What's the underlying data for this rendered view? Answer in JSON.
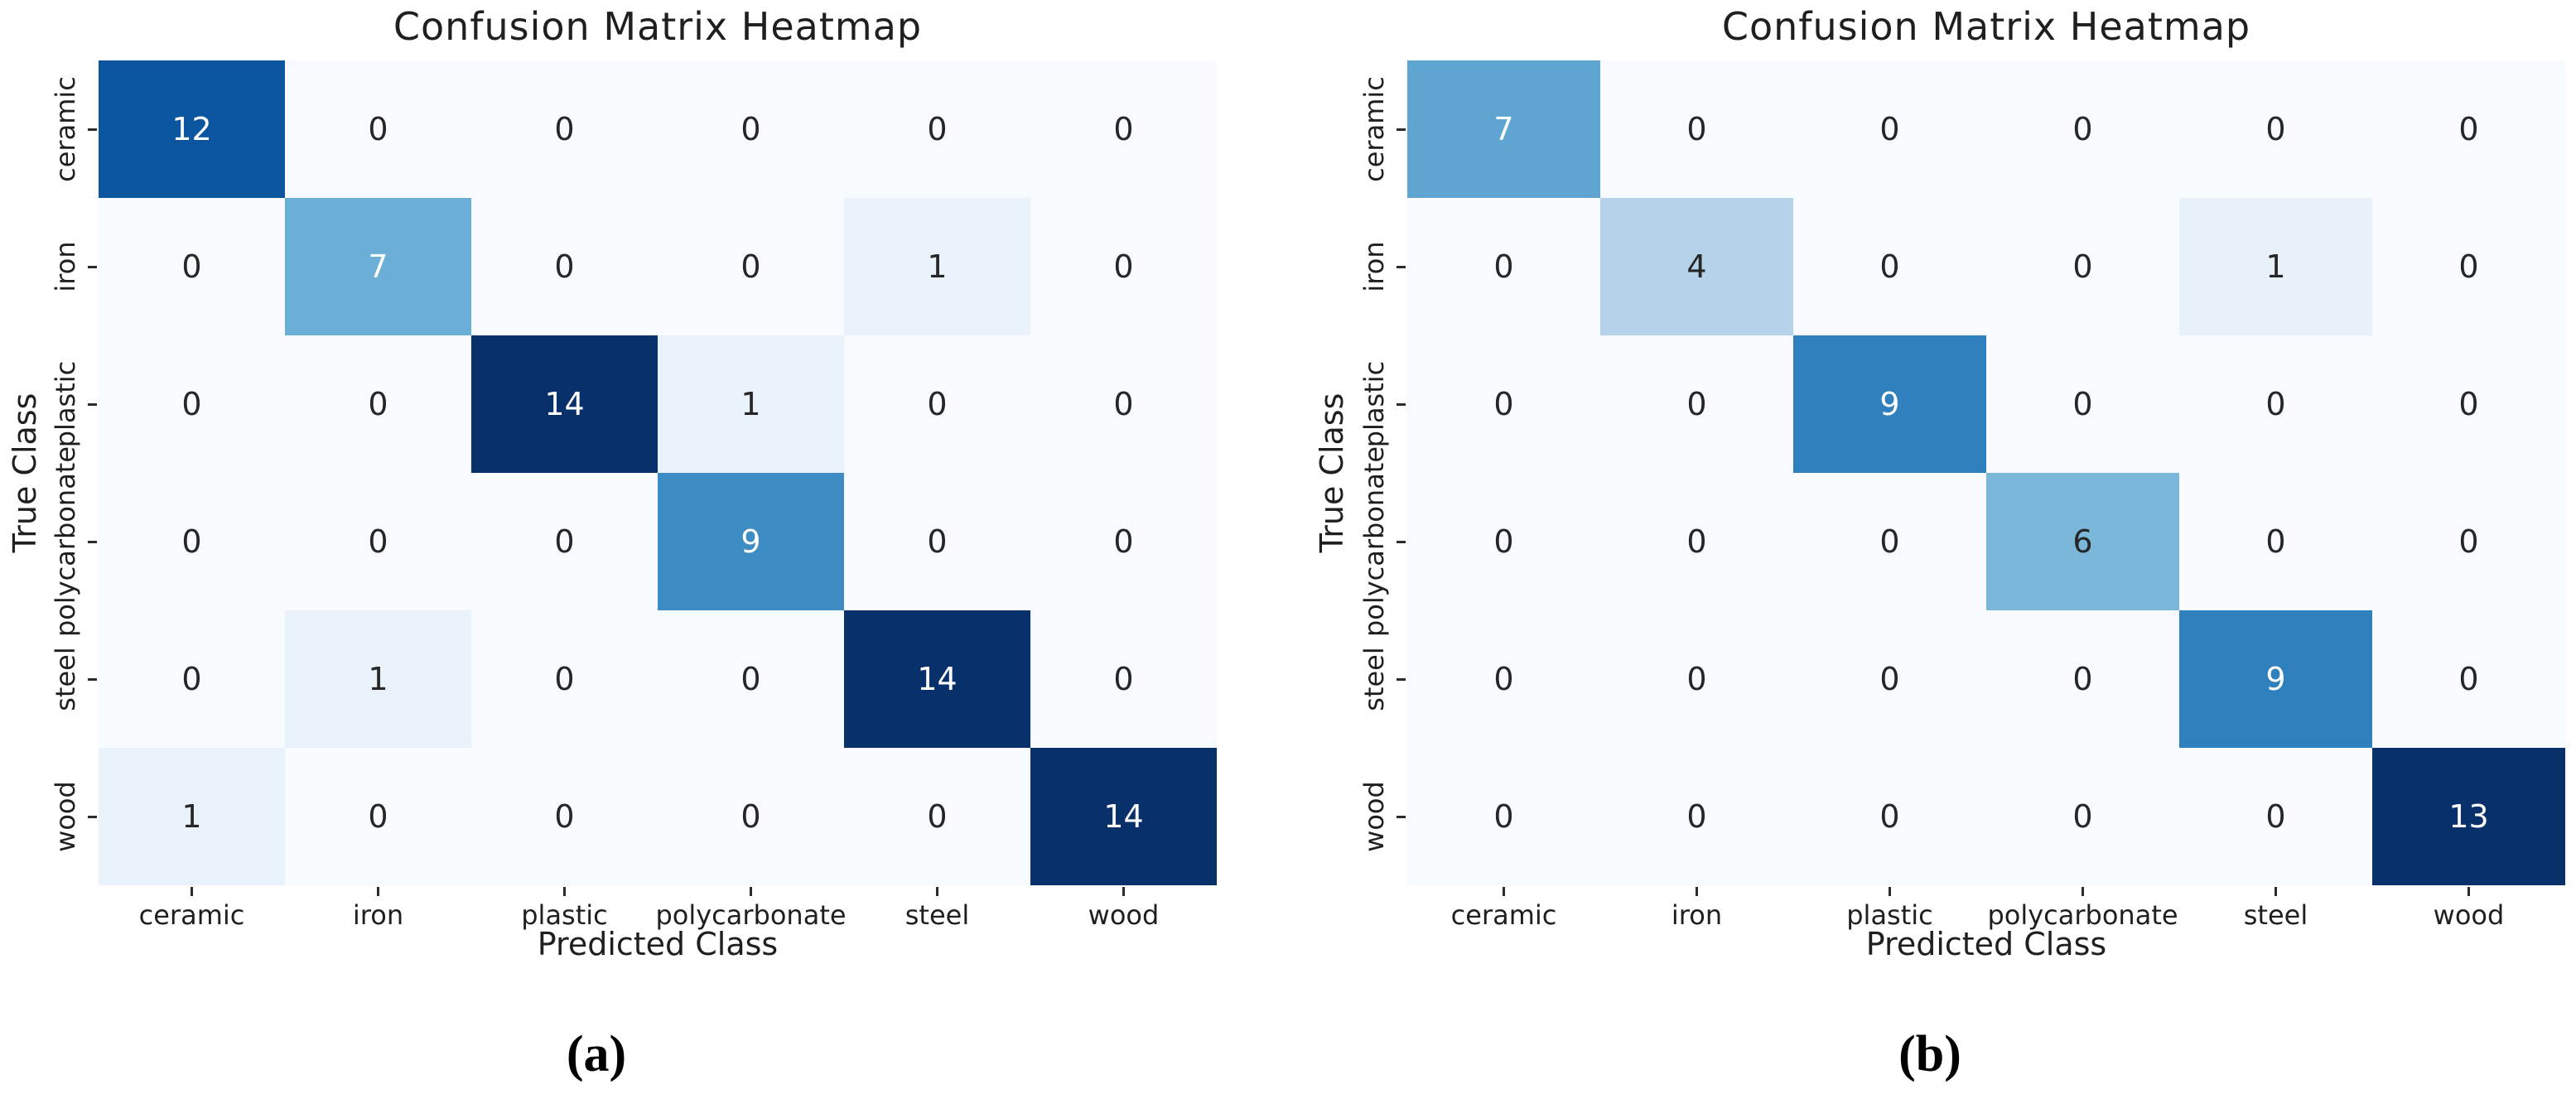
{
  "captions": {
    "a": "(a)",
    "b": "(b)"
  },
  "colors": {
    "background": "#ffffff",
    "colormap_low": "#f7fbff",
    "colormap_high": "#08306b",
    "annotation_dark": "#262626",
    "annotation_light": "#ffffff",
    "text": "#1f1f1f"
  },
  "chart_data": [
    {
      "type": "heatmap",
      "panel": "a",
      "title": "Confusion Matrix Heatmap",
      "xlabel": "Predicted Class",
      "ylabel": "True Class",
      "x_ticklabels": [
        "ceramic",
        "iron",
        "plastic",
        "polycarbonate",
        "steel",
        "wood"
      ],
      "y_ticklabels": [
        "ceramic",
        "iron",
        "plastic",
        "polycarbonate",
        "steel",
        "wood"
      ],
      "values": [
        [
          12,
          0,
          0,
          0,
          0,
          0
        ],
        [
          0,
          7,
          0,
          0,
          1,
          0
        ],
        [
          0,
          0,
          14,
          1,
          0,
          0
        ],
        [
          0,
          0,
          0,
          9,
          0,
          0
        ],
        [
          0,
          1,
          0,
          0,
          14,
          0
        ],
        [
          1,
          0,
          0,
          0,
          0,
          14
        ]
      ],
      "vmin": 0,
      "vmax": 14,
      "colormap": "Blues",
      "annotated": true,
      "grid": false,
      "legend": "none"
    },
    {
      "type": "heatmap",
      "panel": "b",
      "title": "Confusion Matrix Heatmap",
      "xlabel": "Predicted Class",
      "ylabel": "True Class",
      "x_ticklabels": [
        "ceramic",
        "iron",
        "plastic",
        "polycarbonate",
        "steel",
        "wood"
      ],
      "y_ticklabels": [
        "ceramic",
        "iron",
        "plastic",
        "polycarbonate",
        "steel",
        "wood"
      ],
      "values": [
        [
          7,
          0,
          0,
          0,
          0,
          0
        ],
        [
          0,
          4,
          0,
          0,
          1,
          0
        ],
        [
          0,
          0,
          9,
          0,
          0,
          0
        ],
        [
          0,
          0,
          0,
          6,
          0,
          0
        ],
        [
          0,
          0,
          0,
          0,
          9,
          0
        ],
        [
          0,
          0,
          0,
          0,
          0,
          13
        ]
      ],
      "vmin": 0,
      "vmax": 13,
      "colormap": "Blues",
      "annotated": true,
      "grid": false,
      "legend": "none"
    }
  ]
}
